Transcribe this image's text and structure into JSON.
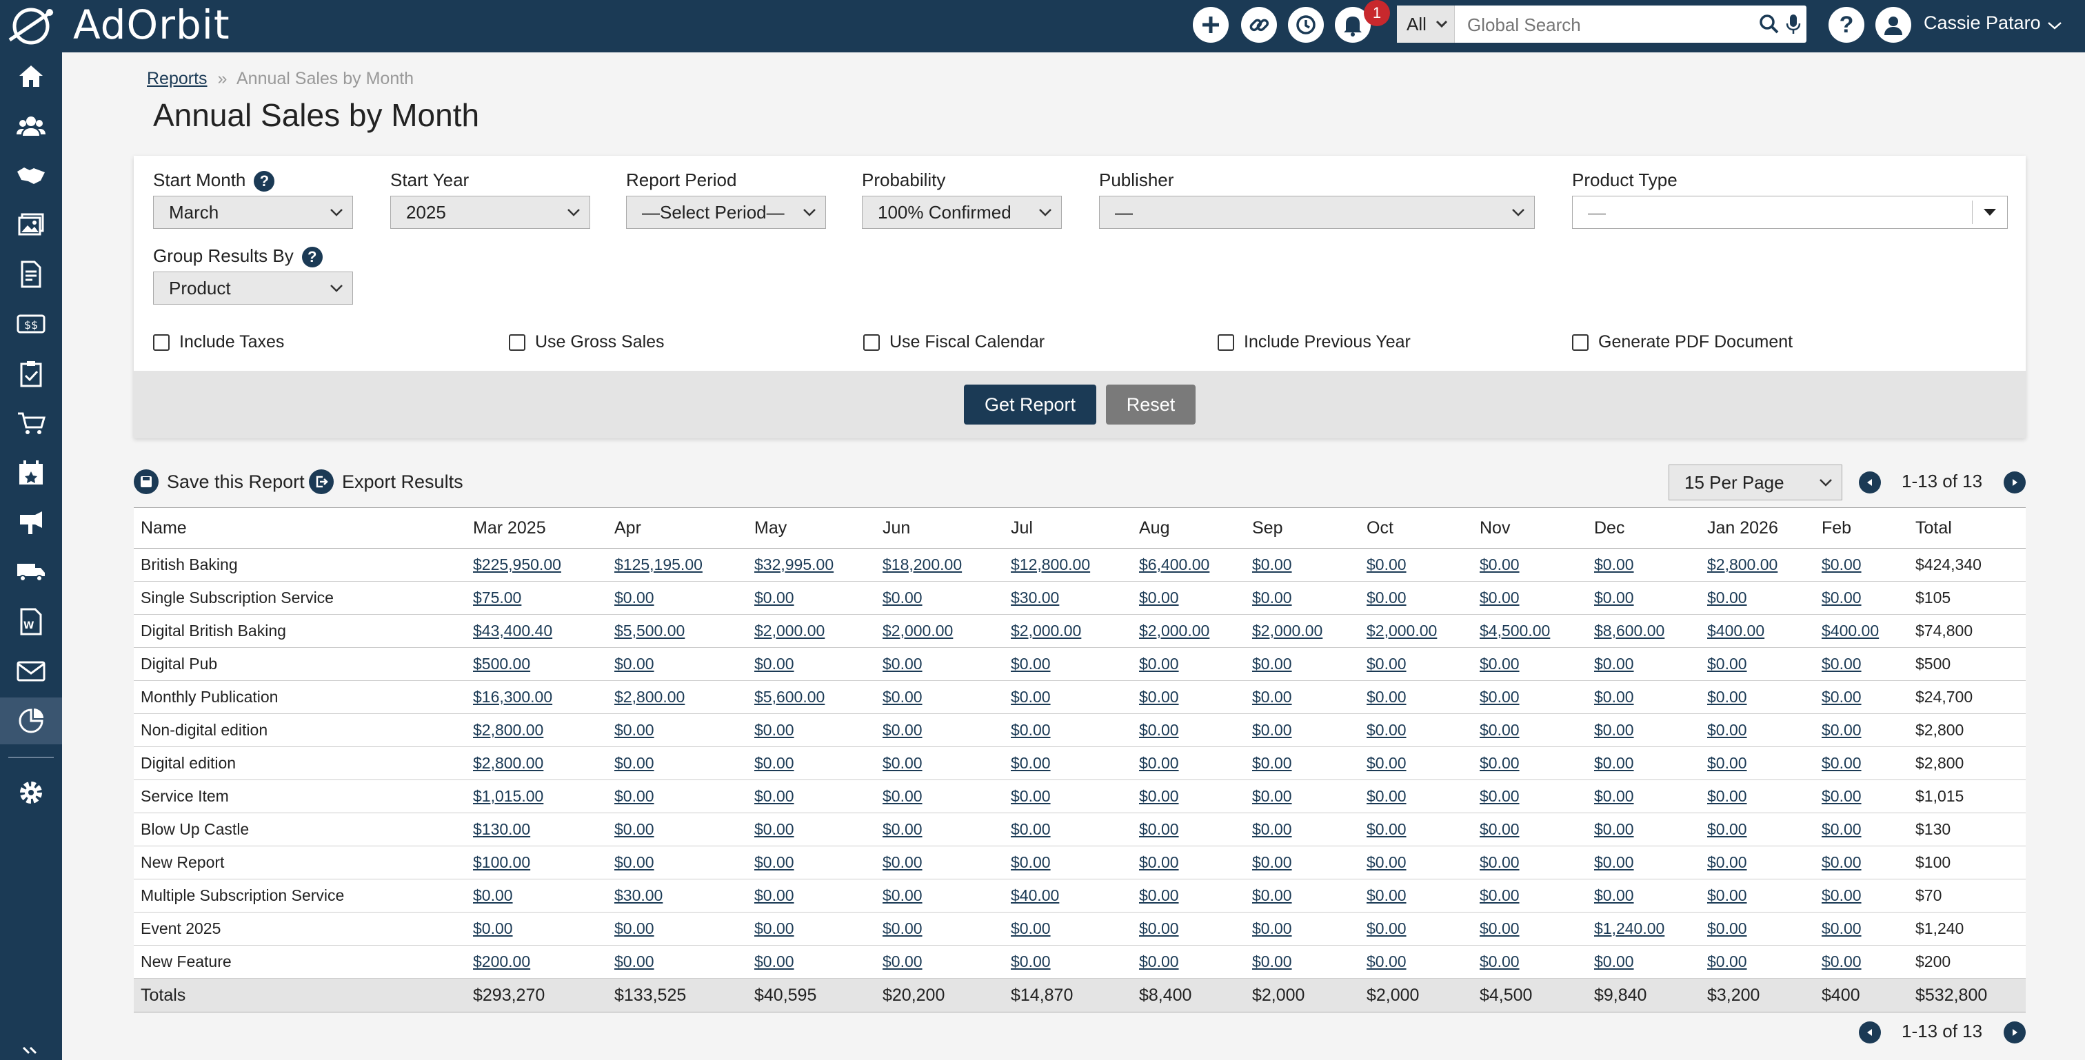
{
  "app": {
    "logo": "AdOrbit"
  },
  "header": {
    "notification_count": "1",
    "search_scope": "All",
    "search_placeholder": "Global Search",
    "user_name": "Cassie Pataro"
  },
  "breadcrumb": {
    "root": "Reports",
    "separator": "»",
    "current": "Annual Sales by Month"
  },
  "page_title": "Annual Sales by Month",
  "filters": {
    "start_month": {
      "label": "Start Month",
      "value": "March"
    },
    "start_year": {
      "label": "Start Year",
      "value": "2025"
    },
    "report_period": {
      "label": "Report Period",
      "value": "—Select Period—"
    },
    "probability": {
      "label": "Probability",
      "value": "100% Confirmed"
    },
    "publisher": {
      "label": "Publisher",
      "value": "—"
    },
    "product_type": {
      "label": "Product Type",
      "value": "—"
    },
    "group_by": {
      "label": "Group Results By",
      "value": "Product"
    },
    "checkboxes": [
      "Include Taxes",
      "Use Gross Sales",
      "Use Fiscal Calendar",
      "Include Previous Year",
      "Generate PDF Document"
    ],
    "get_report_label": "Get Report",
    "reset_label": "Reset"
  },
  "toolbar": {
    "save_label": "Save this Report",
    "export_label": "Export Results",
    "per_page": "15 Per Page",
    "range_text": "1-13 of 13"
  },
  "table": {
    "headers": [
      "Name",
      "Mar 2025",
      "Apr",
      "May",
      "Jun",
      "Jul",
      "Aug",
      "Sep",
      "Oct",
      "Nov",
      "Dec",
      "Jan 2026",
      "Feb",
      "Total"
    ],
    "rows": [
      [
        "British Baking",
        "$225,950.00",
        "$125,195.00",
        "$32,995.00",
        "$18,200.00",
        "$12,800.00",
        "$6,400.00",
        "$0.00",
        "$0.00",
        "$0.00",
        "$0.00",
        "$2,800.00",
        "$0.00",
        "$424,340"
      ],
      [
        "Single Subscription Service",
        "$75.00",
        "$0.00",
        "$0.00",
        "$0.00",
        "$30.00",
        "$0.00",
        "$0.00",
        "$0.00",
        "$0.00",
        "$0.00",
        "$0.00",
        "$0.00",
        "$105"
      ],
      [
        "Digital British Baking",
        "$43,400.40",
        "$5,500.00",
        "$2,000.00",
        "$2,000.00",
        "$2,000.00",
        "$2,000.00",
        "$2,000.00",
        "$2,000.00",
        "$4,500.00",
        "$8,600.00",
        "$400.00",
        "$400.00",
        "$74,800"
      ],
      [
        "Digital Pub",
        "$500.00",
        "$0.00",
        "$0.00",
        "$0.00",
        "$0.00",
        "$0.00",
        "$0.00",
        "$0.00",
        "$0.00",
        "$0.00",
        "$0.00",
        "$0.00",
        "$500"
      ],
      [
        "Monthly Publication",
        "$16,300.00",
        "$2,800.00",
        "$5,600.00",
        "$0.00",
        "$0.00",
        "$0.00",
        "$0.00",
        "$0.00",
        "$0.00",
        "$0.00",
        "$0.00",
        "$0.00",
        "$24,700"
      ],
      [
        "Non-digital edition",
        "$2,800.00",
        "$0.00",
        "$0.00",
        "$0.00",
        "$0.00",
        "$0.00",
        "$0.00",
        "$0.00",
        "$0.00",
        "$0.00",
        "$0.00",
        "$0.00",
        "$2,800"
      ],
      [
        "Digital edition",
        "$2,800.00",
        "$0.00",
        "$0.00",
        "$0.00",
        "$0.00",
        "$0.00",
        "$0.00",
        "$0.00",
        "$0.00",
        "$0.00",
        "$0.00",
        "$0.00",
        "$2,800"
      ],
      [
        "Service Item",
        "$1,015.00",
        "$0.00",
        "$0.00",
        "$0.00",
        "$0.00",
        "$0.00",
        "$0.00",
        "$0.00",
        "$0.00",
        "$0.00",
        "$0.00",
        "$0.00",
        "$1,015"
      ],
      [
        "Blow Up Castle",
        "$130.00",
        "$0.00",
        "$0.00",
        "$0.00",
        "$0.00",
        "$0.00",
        "$0.00",
        "$0.00",
        "$0.00",
        "$0.00",
        "$0.00",
        "$0.00",
        "$130"
      ],
      [
        "New Report",
        "$100.00",
        "$0.00",
        "$0.00",
        "$0.00",
        "$0.00",
        "$0.00",
        "$0.00",
        "$0.00",
        "$0.00",
        "$0.00",
        "$0.00",
        "$0.00",
        "$100"
      ],
      [
        "Multiple Subscription Service",
        "$0.00",
        "$30.00",
        "$0.00",
        "$0.00",
        "$40.00",
        "$0.00",
        "$0.00",
        "$0.00",
        "$0.00",
        "$0.00",
        "$0.00",
        "$0.00",
        "$70"
      ],
      [
        "Event 2025",
        "$0.00",
        "$0.00",
        "$0.00",
        "$0.00",
        "$0.00",
        "$0.00",
        "$0.00",
        "$0.00",
        "$0.00",
        "$1,240.00",
        "$0.00",
        "$0.00",
        "$1,240"
      ],
      [
        "New Feature",
        "$200.00",
        "$0.00",
        "$0.00",
        "$0.00",
        "$0.00",
        "$0.00",
        "$0.00",
        "$0.00",
        "$0.00",
        "$0.00",
        "$0.00",
        "$0.00",
        "$200"
      ]
    ],
    "totals": [
      "Totals",
      "$293,270",
      "$133,525",
      "$40,595",
      "$20,200",
      "$14,870",
      "$8,400",
      "$2,000",
      "$2,000",
      "$4,500",
      "$9,840",
      "$3,200",
      "$400",
      "$532,800"
    ]
  },
  "icons": {
    "sidebar": [
      "home-icon",
      "contacts-icon",
      "deals-icon",
      "media-icon",
      "orders-icon",
      "billing-icon",
      "tasks-icon",
      "cart-icon",
      "calendar-icon",
      "campaign-icon",
      "delivery-icon",
      "word-doc-icon",
      "mail-icon",
      "reports-icon",
      "settings-icon",
      "collapse-icon"
    ]
  },
  "colors": {
    "brand": "#1b3a55",
    "link": "#1b3a55",
    "alert": "#c8282d"
  }
}
